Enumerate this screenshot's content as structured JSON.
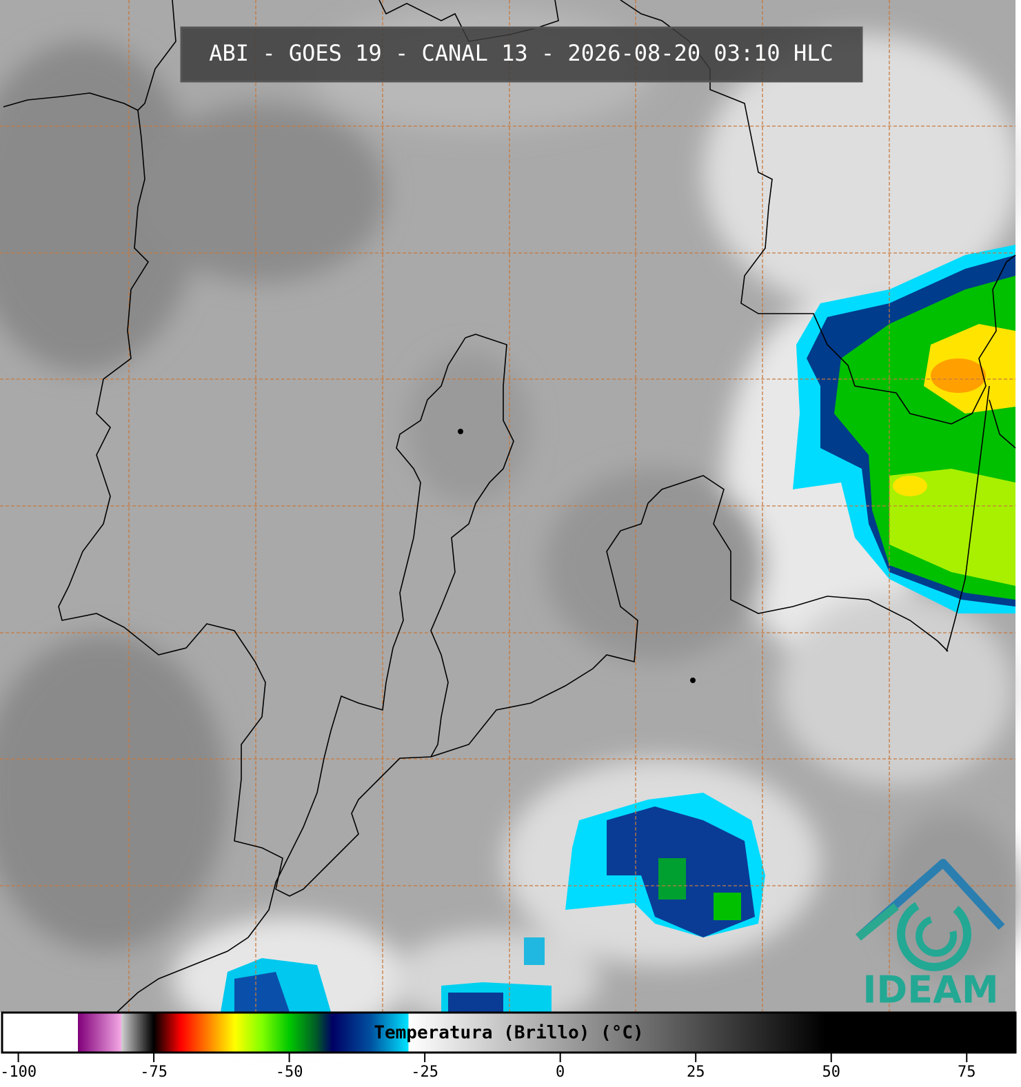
{
  "header": {
    "title": "ABI - GOES 19 - CANAL 13 - 2026-08-20 03:10 HLC"
  },
  "colorbar": {
    "label": "Temperatura (Brillo) (°C)",
    "range": [
      -103,
      84
    ],
    "ticks": [
      -100,
      -75,
      -50,
      -25,
      0,
      25,
      50,
      75
    ],
    "colormap": [
      {
        "value": -103,
        "color": "#ffffff"
      },
      {
        "value": -89,
        "color": "#ffffff"
      },
      {
        "value": -89,
        "color": "#80007a"
      },
      {
        "value": -81,
        "color": "#f4a8e4"
      },
      {
        "value": -81,
        "color": "#d0d0d0"
      },
      {
        "value": -76,
        "color": "#202020"
      },
      {
        "value": -75,
        "color": "#000000"
      },
      {
        "value": -70,
        "color": "#ff0000"
      },
      {
        "value": -65,
        "color": "#ff8000"
      },
      {
        "value": -60,
        "color": "#ffff00"
      },
      {
        "value": -55,
        "color": "#80ff00"
      },
      {
        "value": -50,
        "color": "#00c800"
      },
      {
        "value": -45,
        "color": "#005a28"
      },
      {
        "value": -42,
        "color": "#000064"
      },
      {
        "value": -35,
        "color": "#0050a0"
      },
      {
        "value": -28,
        "color": "#00e4ff"
      },
      {
        "value": -28,
        "color": "#ffffff"
      },
      {
        "value": 49,
        "color": "#000000"
      },
      {
        "value": 84,
        "color": "#000000"
      }
    ]
  },
  "logo": {
    "text": "IDEAM"
  }
}
